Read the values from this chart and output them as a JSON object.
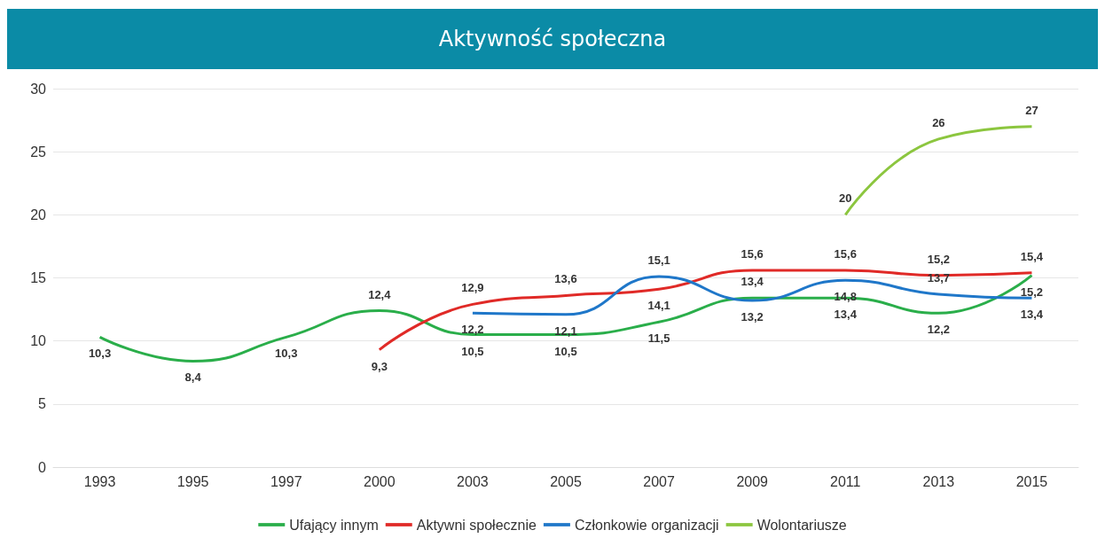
{
  "chart_data": {
    "type": "line",
    "title": "Aktywność społeczna",
    "categories": [
      "1993",
      "1995",
      "1997",
      "2000",
      "2003",
      "2005",
      "2007",
      "2009",
      "2011",
      "2013",
      "2015"
    ],
    "series": [
      {
        "name": "Ufający innym",
        "color": "#2aae4a",
        "values": [
          10.3,
          8.4,
          10.3,
          12.4,
          10.5,
          10.5,
          11.5,
          13.4,
          13.4,
          12.2,
          15.2
        ],
        "value_labels": [
          "10,3",
          "8,4",
          "10,3",
          "12,4",
          "10,5",
          "10,5",
          "11,5",
          "13,4",
          "13,4",
          "12,2",
          "15,2"
        ]
      },
      {
        "name": "Aktywni społecznie",
        "color": "#e02a27",
        "values": [
          null,
          null,
          null,
          9.3,
          12.9,
          13.6,
          14.1,
          15.6,
          15.6,
          15.2,
          15.4
        ],
        "value_labels": [
          null,
          null,
          null,
          "9,3",
          "12,9",
          "13,6",
          "14,1",
          "15,6",
          "15,6",
          "15,2",
          "15,4"
        ]
      },
      {
        "name": "Członkowie organizacji",
        "color": "#1f77c9",
        "values": [
          null,
          null,
          null,
          null,
          12.2,
          12.1,
          15.1,
          13.2,
          14.8,
          13.7,
          13.4
        ],
        "value_labels": [
          null,
          null,
          null,
          null,
          "12,2",
          "12,1",
          "15,1",
          "13,2",
          "14,8",
          "13,7",
          "13,4"
        ]
      },
      {
        "name": "Wolontariusze",
        "color": "#8cc63f",
        "values": [
          null,
          null,
          null,
          null,
          null,
          null,
          null,
          null,
          20,
          26,
          27
        ],
        "value_labels": [
          null,
          null,
          null,
          null,
          null,
          null,
          null,
          null,
          "20",
          "26",
          "27"
        ]
      }
    ],
    "ylim": [
      0,
      30
    ],
    "yticks": [
      0,
      5,
      10,
      15,
      20,
      25,
      30
    ],
    "grid": "y",
    "legend": "bottom",
    "marker": "none",
    "line_style": "solid"
  }
}
